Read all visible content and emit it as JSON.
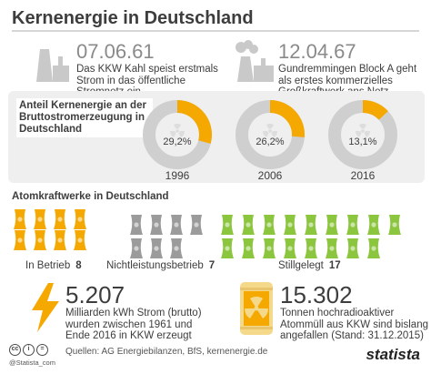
{
  "title": "Kernenergie in Deutschland",
  "facts": [
    {
      "date": "07.06.61",
      "text": [
        "Das KKW Kahl speist erstmals",
        "Strom in das öffentliche",
        "Stromnetz ein"
      ]
    },
    {
      "date": "12.04.67",
      "text": [
        "Gundremmingen Block A geht",
        "als erstes kommerzielles",
        "Großkraftwerk ans Netz"
      ]
    }
  ],
  "share": {
    "label": "Anteil Kernenergie an der Bruttostromerzeugung in Deutschland",
    "donuts": [
      {
        "year": "1996",
        "value_label": "29,2%",
        "fraction": 0.292
      },
      {
        "year": "2006",
        "value_label": "26,2%",
        "fraction": 0.262
      },
      {
        "year": "2016",
        "value_label": "13,1%",
        "fraction": 0.131
      }
    ]
  },
  "plants": {
    "label": "Atomkraftwerke in Deutschland",
    "groups": [
      {
        "name": "In Betrieb",
        "count": "8",
        "color": "#f5a800"
      },
      {
        "name": "Nichtleistungsbetrieb",
        "count": "7",
        "color": "#9b9b9b"
      },
      {
        "name": "Stillgelegt",
        "count": "17",
        "color": "#8cc63f"
      }
    ]
  },
  "stats": [
    {
      "value": "5.207",
      "text": [
        "Milliarden kWh Strom (brutto)",
        "wurden zwischen 1961 und",
        "Ende 2016 in KKW erzeugt"
      ]
    },
    {
      "value": "15.302",
      "text": [
        "Tonnen hochradioaktiver",
        "Atommüll aus KKW sind bislang",
        "angefallen (Stand: 31.12.2015)"
      ]
    }
  ],
  "footer": {
    "site": "@Statista_com",
    "source": "Quellen: AG Energiebilanzen, BfS, kernenergie.de",
    "brand": "statista",
    "cc_glyphs": [
      "cc",
      "i",
      "="
    ]
  },
  "colors": {
    "accent": "#f5a800",
    "ring": "#cfcfcf",
    "grey": "#9b9b9b",
    "green": "#8cc63f"
  }
}
